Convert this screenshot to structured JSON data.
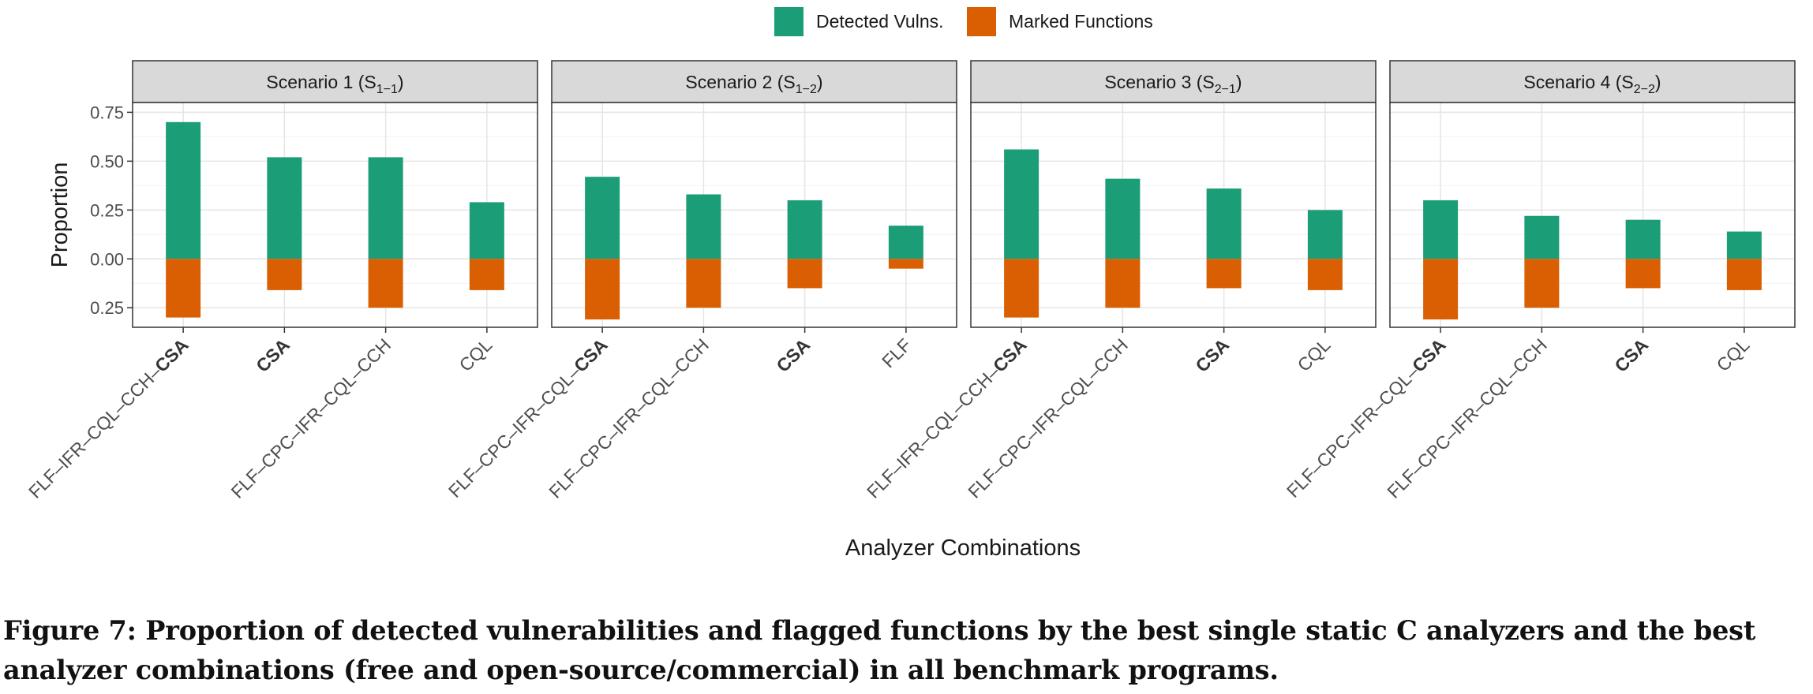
{
  "chart_data": {
    "type": "bar",
    "ylabel": "Proportion",
    "xlabel": "Analyzer Combinations",
    "ylim": [
      -0.35,
      0.8
    ],
    "yticks": [
      0.75,
      0.5,
      0.25,
      0.0,
      -0.25
    ],
    "ytick_labels": [
      "0.75",
      "0.50",
      "0.25",
      "0.00",
      "0.25"
    ],
    "grid": true,
    "legend": {
      "position": "top",
      "entries": [
        {
          "name": "Detected Vulns.",
          "color": "#1b9e77"
        },
        {
          "name": "Marked Functions",
          "color": "#d95f02"
        }
      ]
    },
    "panels": [
      {
        "title": {
          "prefix": "Scenario 1 (S",
          "sub": "1−1",
          "suffix": ")"
        },
        "categories": [
          {
            "plain": "FLF–IFR–CQL–CCH–",
            "bold": "CSA"
          },
          {
            "plain": "",
            "bold": "CSA"
          },
          {
            "plain": "FLF–CPC–IFR–CQL–CCH",
            "bold": ""
          },
          {
            "plain": "CQL",
            "bold": ""
          }
        ],
        "detected": [
          0.7,
          0.52,
          0.52,
          0.29
        ],
        "marked": [
          -0.3,
          -0.16,
          -0.25,
          -0.16
        ]
      },
      {
        "title": {
          "prefix": "Scenario 2 (S",
          "sub": "1−2",
          "suffix": ")"
        },
        "categories": [
          {
            "plain": "FLF–CPC–IFR–CQL–",
            "bold": "CSA"
          },
          {
            "plain": "FLF–CPC–IFR–CQL–CCH",
            "bold": ""
          },
          {
            "plain": "",
            "bold": "CSA"
          },
          {
            "plain": "FLF",
            "bold": ""
          }
        ],
        "detected": [
          0.42,
          0.33,
          0.3,
          0.17
        ],
        "marked": [
          -0.31,
          -0.25,
          -0.15,
          -0.05
        ]
      },
      {
        "title": {
          "prefix": "Scenario 3 (S",
          "sub": "2−1",
          "suffix": ")"
        },
        "categories": [
          {
            "plain": "FLF–IFR–CQL–CCH–",
            "bold": "CSA"
          },
          {
            "plain": "FLF–CPC–IFR–CQL–CCH",
            "bold": ""
          },
          {
            "plain": "",
            "bold": "CSA"
          },
          {
            "plain": "CQL",
            "bold": ""
          }
        ],
        "detected": [
          0.56,
          0.41,
          0.36,
          0.25
        ],
        "marked": [
          -0.3,
          -0.25,
          -0.15,
          -0.16
        ]
      },
      {
        "title": {
          "prefix": "Scenario 4 (S",
          "sub": "2−2",
          "suffix": ")"
        },
        "categories": [
          {
            "plain": "FLF–CPC–IFR–CQL–",
            "bold": "CSA"
          },
          {
            "plain": "FLF–CPC–IFR–CQL–CCH",
            "bold": ""
          },
          {
            "plain": "",
            "bold": "CSA"
          },
          {
            "plain": "CQL",
            "bold": ""
          }
        ],
        "detected": [
          0.3,
          0.22,
          0.2,
          0.14
        ],
        "marked": [
          -0.31,
          -0.25,
          -0.15,
          -0.16
        ]
      }
    ]
  },
  "caption": "Figure 7: Proportion of detected vulnerabilities and flagged functions by the best single static C analyzers and the best analyzer combinations (free and open-source/commercial) in all benchmark programs."
}
